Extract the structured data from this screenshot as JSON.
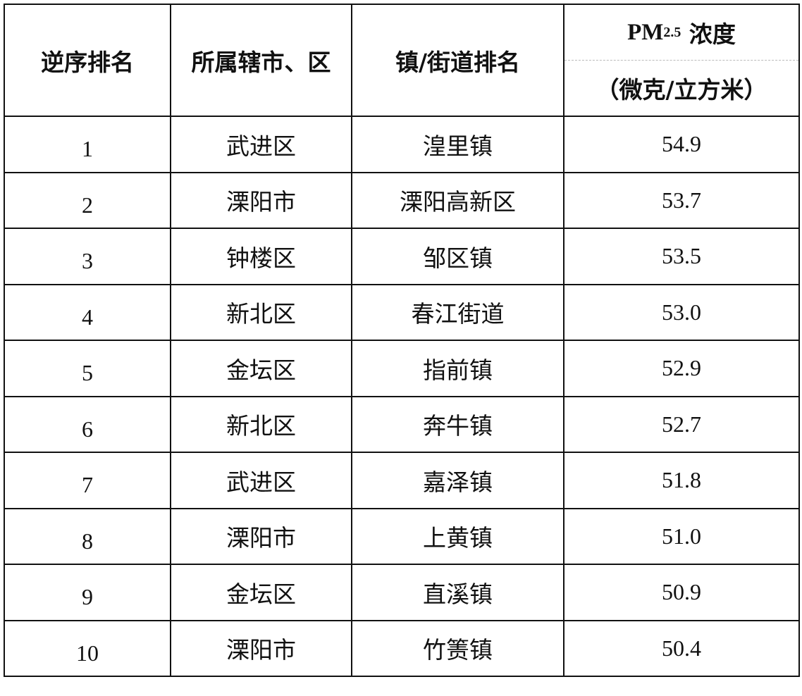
{
  "headers": {
    "rank": "逆序排名",
    "district": "所属辖市、区",
    "town": "镇/街道排名",
    "pm_prefix": "PM",
    "pm_sub": "2.5",
    "pm_label": "浓度",
    "unit": "（微克/立方米）"
  },
  "rows": [
    {
      "rank": "1",
      "district": "武进区",
      "town": "湟里镇",
      "value": "54.9"
    },
    {
      "rank": "2",
      "district": "溧阳市",
      "town": "溧阳高新区",
      "value": "53.7"
    },
    {
      "rank": "3",
      "district": "钟楼区",
      "town": "邹区镇",
      "value": "53.5"
    },
    {
      "rank": "4",
      "district": "新北区",
      "town": "春江街道",
      "value": "53.0"
    },
    {
      "rank": "5",
      "district": "金坛区",
      "town": "指前镇",
      "value": "52.9"
    },
    {
      "rank": "6",
      "district": "新北区",
      "town": "奔牛镇",
      "value": "52.7"
    },
    {
      "rank": "7",
      "district": "武进区",
      "town": "嘉泽镇",
      "value": "51.8"
    },
    {
      "rank": "8",
      "district": "溧阳市",
      "town": "上黄镇",
      "value": "51.0"
    },
    {
      "rank": "9",
      "district": "金坛区",
      "town": "直溪镇",
      "value": "50.9"
    },
    {
      "rank": "10",
      "district": "溧阳市",
      "town": "竹箦镇",
      "value": "50.4"
    }
  ]
}
